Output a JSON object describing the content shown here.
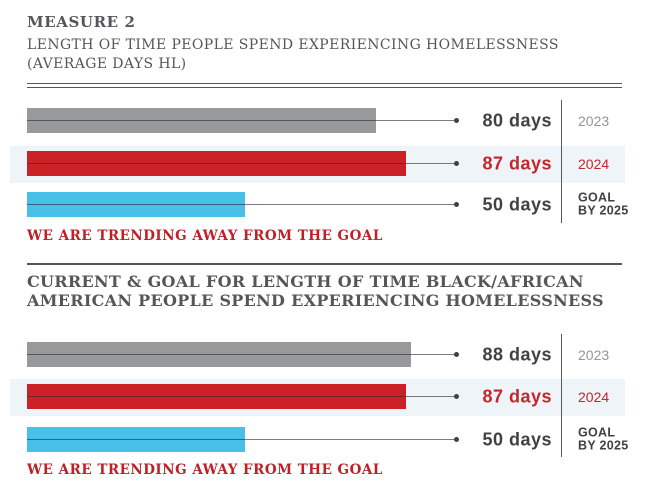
{
  "header": {
    "kicker": "MEASURE 2",
    "subtitle_line1": "LENGTH OF TIME PEOPLE SPEND EXPERIENCING HOMELESSNESS",
    "subtitle_line2": "(AVERAGE DAYS HL)"
  },
  "section2": {
    "title_line1": "CURRENT & GOAL FOR LENGTH OF TIME BLACK/AFRICAN",
    "title_line2": "AMERICAN PEOPLE SPEND EXPERIENCING HOMELESSNESS"
  },
  "colors": {
    "bar_gray": "#98999b",
    "bar_red": "#cb2127",
    "bar_blue": "#47c1e8",
    "highlight_band": "#eef4f8",
    "text_dark": "#414042",
    "text_gray_year": "#939598",
    "text_red": "#c1272d",
    "heading": "#55565a"
  },
  "chart_data": [
    {
      "type": "bar",
      "orientation": "horizontal",
      "title": "LENGTH OF TIME PEOPLE SPEND EXPERIENCING HOMELESSNESS (AVERAGE DAYS HL)",
      "kicker": "MEASURE 2",
      "unit": "days",
      "xlabel": "",
      "ylabel": "",
      "xlim": [
        0,
        100
      ],
      "grid": false,
      "legend_position": "none",
      "categories": [
        "2023",
        "2024",
        "GOAL BY 2025"
      ],
      "values": [
        80,
        87,
        50
      ],
      "rows": [
        {
          "year_label": "2023",
          "value": 80,
          "value_label": "80 days",
          "color": "#98999b",
          "highlighted": false
        },
        {
          "year_label": "2024",
          "value": 87,
          "value_label": "87 days",
          "color": "#cb2127",
          "highlighted": true
        },
        {
          "year_label_line1": "GOAL",
          "year_label_line2": "BY 2025",
          "value": 50,
          "value_label": "50 days",
          "color": "#47c1e8",
          "highlighted": false
        }
      ],
      "note": "WE ARE TRENDING AWAY FROM THE GOAL"
    },
    {
      "type": "bar",
      "orientation": "horizontal",
      "title": "CURRENT & GOAL FOR LENGTH OF TIME BLACK/AFRICAN AMERICAN PEOPLE SPEND EXPERIENCING HOMELESSNESS",
      "unit": "days",
      "xlabel": "",
      "ylabel": "",
      "xlim": [
        0,
        100
      ],
      "grid": false,
      "legend_position": "none",
      "categories": [
        "2023",
        "2024",
        "GOAL BY 2025"
      ],
      "values": [
        88,
        87,
        50
      ],
      "rows": [
        {
          "year_label": "2023",
          "value": 88,
          "value_label": "88 days",
          "color": "#98999b",
          "highlighted": false
        },
        {
          "year_label": "2024",
          "value": 87,
          "value_label": "87 days",
          "color": "#cb2127",
          "highlighted": true
        },
        {
          "year_label_line1": "GOAL",
          "year_label_line2": "BY 2025",
          "value": 50,
          "value_label": "50 days",
          "color": "#47c1e8",
          "highlighted": false
        }
      ],
      "note": "WE ARE TRENDING AWAY FROM THE GOAL"
    }
  ]
}
